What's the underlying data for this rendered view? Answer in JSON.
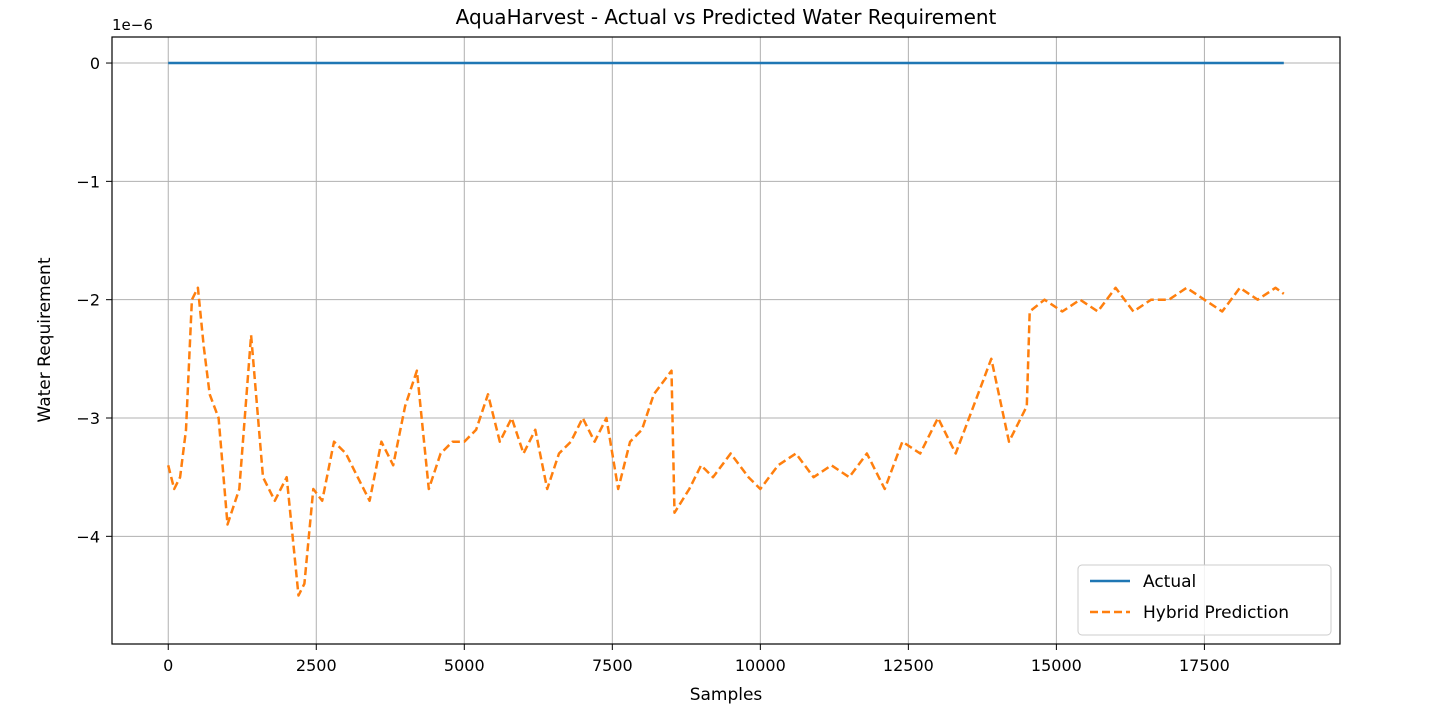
{
  "chart_data": {
    "type": "line",
    "title": "AquaHarvest - Actual vs Predicted Water Requirement",
    "xlabel": "Samples",
    "ylabel": "Water Requirement",
    "y_offset_label": "1e−6",
    "xlim": [
      -950,
      19790
    ],
    "ylim": [
      -4.91e-06,
      2.2e-07
    ],
    "x_ticks": [
      0,
      2500,
      5000,
      7500,
      10000,
      12500,
      15000,
      17500
    ],
    "x_tick_labels": [
      "0",
      "2500",
      "5000",
      "7500",
      "10000",
      "12500",
      "15000",
      "17500"
    ],
    "y_ticks": [
      0,
      -1e-06,
      -2e-06,
      -3e-06,
      -4e-06
    ],
    "y_tick_labels": [
      "0",
      "−1",
      "−2",
      "−3",
      "−4"
    ],
    "grid": true,
    "legend_position": "lower-right",
    "series": [
      {
        "name": "Actual",
        "color": "#1f77b4",
        "style": "solid",
        "x": [
          0,
          18840
        ],
        "y": [
          0,
          0
        ]
      },
      {
        "name": "Hybrid Prediction",
        "color": "#ff7f0e",
        "style": "dashed",
        "x": [
          0,
          100,
          200,
          300,
          400,
          500,
          600,
          700,
          850,
          1000,
          1200,
          1400,
          1600,
          1800,
          2000,
          2200,
          2300,
          2450,
          2600,
          2800,
          3000,
          3200,
          3400,
          3600,
          3800,
          4000,
          4200,
          4400,
          4600,
          4800,
          5000,
          5200,
          5400,
          5600,
          5800,
          6000,
          6200,
          6400,
          6600,
          6800,
          7000,
          7200,
          7400,
          7600,
          7800,
          8000,
          8200,
          8500,
          8550,
          8800,
          9000,
          9200,
          9500,
          9800,
          10000,
          10300,
          10600,
          10900,
          11200,
          11500,
          11800,
          12100,
          12400,
          12700,
          13000,
          13300,
          13600,
          13900,
          14200,
          14500,
          14550,
          14800,
          15100,
          15400,
          15700,
          16000,
          16300,
          16600,
          16900,
          17200,
          17500,
          17800,
          18100,
          18400,
          18700,
          18840
        ],
        "y": [
          -3.4e-06,
          -3.6e-06,
          -3.5e-06,
          -3.1e-06,
          -2e-06,
          -1.9e-06,
          -2.4e-06,
          -2.8e-06,
          -3e-06,
          -3.9e-06,
          -3.6e-06,
          -2.3e-06,
          -3.5e-06,
          -3.7e-06,
          -3.5e-06,
          -4.5e-06,
          -4.4e-06,
          -3.6e-06,
          -3.7e-06,
          -3.2e-06,
          -3.3e-06,
          -3.5e-06,
          -3.7e-06,
          -3.2e-06,
          -3.4e-06,
          -2.9e-06,
          -2.6e-06,
          -3.6e-06,
          -3.3e-06,
          -3.2e-06,
          -3.2e-06,
          -3.1e-06,
          -2.8e-06,
          -3.2e-06,
          -3e-06,
          -3.3e-06,
          -3.1e-06,
          -3.6e-06,
          -3.3e-06,
          -3.2e-06,
          -3e-06,
          -3.2e-06,
          -3e-06,
          -3.6e-06,
          -3.2e-06,
          -3.1e-06,
          -2.8e-06,
          -2.6e-06,
          -3.8e-06,
          -3.6e-06,
          -3.4e-06,
          -3.5e-06,
          -3.3e-06,
          -3.5e-06,
          -3.6e-06,
          -3.4e-06,
          -3.3e-06,
          -3.5e-06,
          -3.4e-06,
          -3.5e-06,
          -3.3e-06,
          -3.6e-06,
          -3.2e-06,
          -3.3e-06,
          -3e-06,
          -3.3e-06,
          -2.9e-06,
          -2.5e-06,
          -3.2e-06,
          -2.9e-06,
          -2.1e-06,
          -2e-06,
          -2.1e-06,
          -2e-06,
          -2.1e-06,
          -1.9e-06,
          -2.1e-06,
          -2e-06,
          -2e-06,
          -1.9e-06,
          -2e-06,
          -2.1e-06,
          -1.9e-06,
          -2e-06,
          -1.9e-06,
          -1.95e-06
        ]
      }
    ]
  }
}
